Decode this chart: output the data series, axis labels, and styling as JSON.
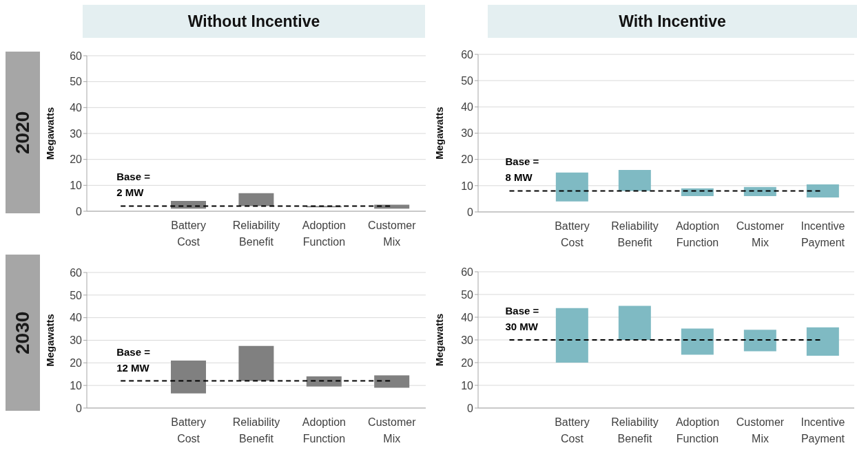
{
  "chart_data": [
    {
      "type": "bar",
      "title": "Without Incentive",
      "annotations": [
        "2020"
      ],
      "ylabel": "Megawatts",
      "categories": [
        null,
        "Battery Cost",
        "Reliability Benefit",
        "Adoption Function",
        "Customer Mix"
      ],
      "base": [
        null,
        1,
        2,
        1.5,
        1
      ],
      "values": [
        null,
        3,
        5,
        0.5,
        1.5
      ],
      "color": "#808080",
      "ylim": [
        0,
        60
      ],
      "yticks": [
        0,
        10,
        20,
        30,
        40,
        50,
        60
      ],
      "grid": "y",
      "ref_lines": [
        {
          "axis": "y",
          "value": 2,
          "label": "Base = 2 MW",
          "color": "#000000",
          "line_style": "dashed"
        }
      ]
    },
    {
      "type": "bar",
      "title": "With Incentive",
      "ylabel": "Megawatts",
      "categories": [
        null,
        "Battery Cost",
        "Reliability Benefit",
        "Adoption Function",
        "Customer Mix",
        "Incentive Payment"
      ],
      "base": [
        null,
        4,
        8,
        6,
        6,
        5.5
      ],
      "values": [
        null,
        11,
        8,
        3,
        3.5,
        5
      ],
      "color": "#7fbac3",
      "ylim": [
        0,
        60
      ],
      "yticks": [
        0,
        10,
        20,
        30,
        40,
        50,
        60
      ],
      "grid": "y",
      "ref_lines": [
        {
          "axis": "y",
          "value": 8,
          "label": "Base = 8 MW",
          "color": "#000000",
          "line_style": "dashed"
        }
      ]
    },
    {
      "type": "bar",
      "annotations": [
        "2030"
      ],
      "ylabel": "Megawatts",
      "categories": [
        null,
        "Battery Cost",
        "Reliability Benefit",
        "Adoption Function",
        "Customer Mix"
      ],
      "base": [
        null,
        6.5,
        12,
        9.5,
        9
      ],
      "values": [
        null,
        14.5,
        15.5,
        4.5,
        5.5
      ],
      "color": "#808080",
      "ylim": [
        0,
        60
      ],
      "yticks": [
        0,
        10,
        20,
        30,
        40,
        50,
        60
      ],
      "grid": "y",
      "ref_lines": [
        {
          "axis": "y",
          "value": 12,
          "label": "Base = 12 MW",
          "color": "#000000",
          "line_style": "dashed"
        }
      ]
    },
    {
      "type": "bar",
      "ylabel": "Megawatts",
      "categories": [
        null,
        "Battery Cost",
        "Reliability Benefit",
        "Adoption Function",
        "Customer Mix",
        "Incentive Payment"
      ],
      "base": [
        null,
        20,
        30,
        23.5,
        25,
        23
      ],
      "values": [
        null,
        24,
        15,
        11.5,
        9.5,
        12.5
      ],
      "color": "#7fbac3",
      "ylim": [
        0,
        60
      ],
      "yticks": [
        0,
        10,
        20,
        30,
        40,
        50,
        60
      ],
      "grid": "y",
      "ref_lines": [
        {
          "axis": "y",
          "value": 30,
          "label": "Base = 30 MW",
          "color": "#000000",
          "line_style": "dashed"
        }
      ]
    }
  ]
}
